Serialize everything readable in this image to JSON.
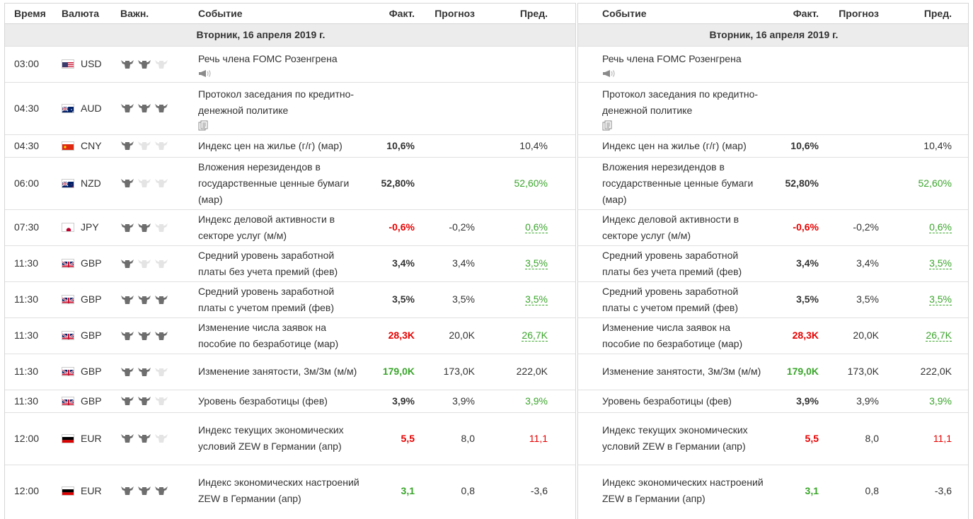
{
  "headers": {
    "time": "Время",
    "currency": "Валюта",
    "importance": "Важн.",
    "event": "Событие",
    "actual": "Факт.",
    "forecast": "Прогноз",
    "previous": "Пред."
  },
  "date_label": "Вторник, 16 апреля 2019 г.",
  "colors": {
    "negative": "#e80000",
    "positive": "#3aa52b",
    "bull_active": "#6e6e6e",
    "bull_inactive": "#e4e4e4",
    "date_bg": "#ececec"
  },
  "rows": [
    {
      "time": "03:00",
      "currency": "USD",
      "flag": "us-flag",
      "importance": 2,
      "event": "Речь члена FOMC Розенгрена",
      "icon": "speaker-icon",
      "actual": "",
      "actual_color": "",
      "forecast": "",
      "previous": "",
      "previous_color": "",
      "previous_dashed": false
    },
    {
      "time": "04:30",
      "currency": "AUD",
      "flag": "au-flag",
      "importance": 3,
      "event": "Протокол заседания по кредитно-денежной политике",
      "icon": "document-icon",
      "actual": "",
      "actual_color": "",
      "forecast": "",
      "previous": "",
      "previous_color": "",
      "previous_dashed": false
    },
    {
      "time": "04:30",
      "currency": "CNY",
      "flag": "cn-flag",
      "importance": 1,
      "event": "Индекс цен на жилье (г/г) (мар)",
      "icon": "",
      "actual": "10,6%",
      "actual_color": "",
      "forecast": "",
      "previous": "10,4%",
      "previous_color": "",
      "previous_dashed": false
    },
    {
      "time": "06:00",
      "currency": "NZD",
      "flag": "nz-flag",
      "importance": 1,
      "event": "Вложения нерезидендов в государственные ценные бумаги (мар)",
      "icon": "",
      "actual": "52,80%",
      "actual_color": "",
      "forecast": "",
      "previous": "52,60%",
      "previous_color": "green",
      "previous_dashed": false
    },
    {
      "time": "07:30",
      "currency": "JPY",
      "flag": "jp-flag",
      "importance": 2,
      "event": "Индекс деловой активности в секторе услуг (м/м)",
      "icon": "",
      "actual": "-0,6%",
      "actual_color": "red",
      "forecast": "-0,2%",
      "previous": "0,6%",
      "previous_color": "green",
      "previous_dashed": true
    },
    {
      "time": "11:30",
      "currency": "GBP",
      "flag": "gb-flag",
      "importance": 1,
      "event": "Средний уровень заработной платы без учета премий (фев)",
      "icon": "",
      "actual": "3,4%",
      "actual_color": "",
      "forecast": "3,4%",
      "previous": "3,5%",
      "previous_color": "green",
      "previous_dashed": true
    },
    {
      "time": "11:30",
      "currency": "GBP",
      "flag": "gb-flag",
      "importance": 3,
      "event": "Средний уровень заработной платы с учетом премий (фев)",
      "icon": "",
      "actual": "3,5%",
      "actual_color": "",
      "forecast": "3,5%",
      "previous": "3,5%",
      "previous_color": "green",
      "previous_dashed": true
    },
    {
      "time": "11:30",
      "currency": "GBP",
      "flag": "gb-flag",
      "importance": 3,
      "event": "Изменение числа заявок на пособие по безработице (мар)",
      "icon": "",
      "actual": "28,3K",
      "actual_color": "red",
      "forecast": "20,0K",
      "previous": "26,7K",
      "previous_color": "green",
      "previous_dashed": true
    },
    {
      "time": "11:30",
      "currency": "GBP",
      "flag": "gb-flag",
      "importance": 2,
      "event": "Изменение занятости, 3м/3м (м/м)",
      "icon": "",
      "actual": "179,0K",
      "actual_color": "green",
      "forecast": "173,0K",
      "previous": "222,0K",
      "previous_color": "",
      "previous_dashed": false
    },
    {
      "time": "11:30",
      "currency": "GBP",
      "flag": "gb-flag",
      "importance": 2,
      "event": "Уровень безработицы (фев)",
      "icon": "",
      "actual": "3,9%",
      "actual_color": "",
      "forecast": "3,9%",
      "previous": "3,9%",
      "previous_color": "green",
      "previous_dashed": false
    },
    {
      "time": "12:00",
      "currency": "EUR",
      "flag": "de-flag",
      "importance": 2,
      "event": "Индекс текущих экономических условий ZEW в Германии (апр)",
      "icon": "",
      "actual": "5,5",
      "actual_color": "red",
      "forecast": "8,0",
      "previous": "11,1",
      "previous_color": "red",
      "previous_dashed": false
    },
    {
      "time": "12:00",
      "currency": "EUR",
      "flag": "de-flag",
      "importance": 3,
      "event": "Индекс экономических настроений ZEW в Германии (апр)",
      "icon": "",
      "actual": "3,1",
      "actual_color": "green",
      "forecast": "0,8",
      "previous": "-3,6",
      "previous_color": "",
      "previous_dashed": false
    }
  ]
}
